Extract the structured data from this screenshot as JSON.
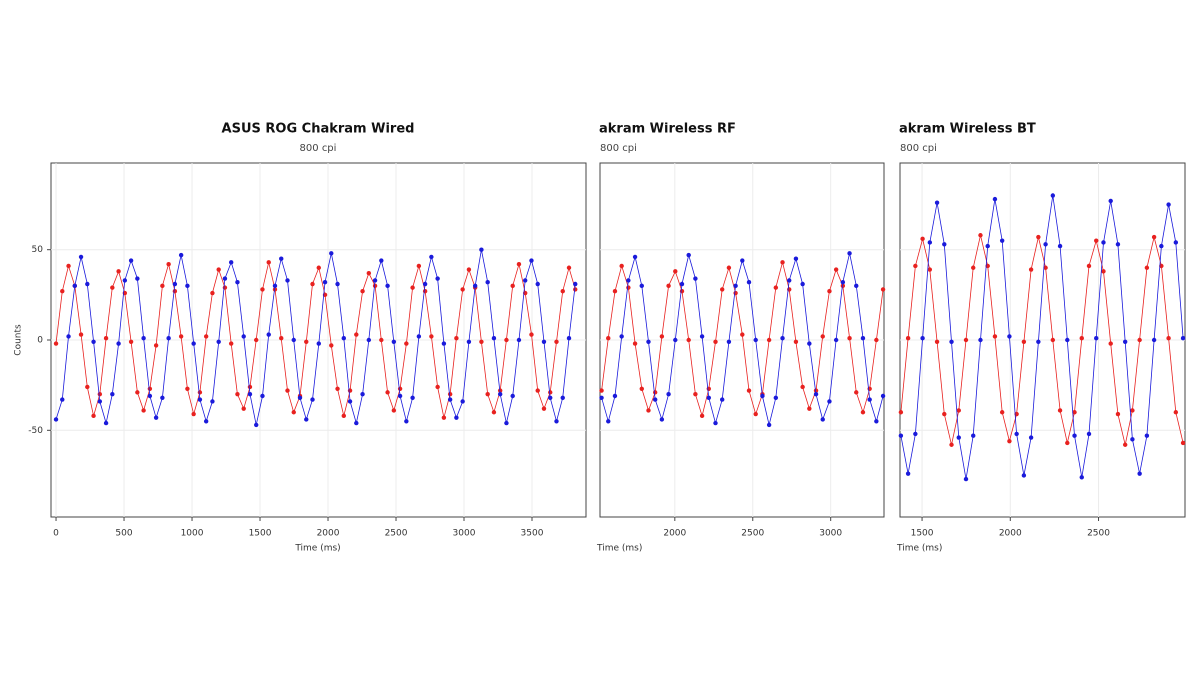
{
  "chart_data": [
    {
      "type": "scatter",
      "title": "ASUS ROG Chakram Wired",
      "subtitle": "800 cpi",
      "x_label": "Time (ms)",
      "y_label": "Counts",
      "xlim": [
        -37,
        3897
      ],
      "ylim": [
        -98,
        98
      ],
      "xticks": [
        0,
        500,
        1000,
        1500,
        2000,
        2500,
        3000,
        3500
      ],
      "yticks": [
        -50,
        0,
        50
      ],
      "ytick_labels": true,
      "grid": true,
      "x": [
        0,
        46,
        92,
        138,
        184,
        230,
        276,
        322,
        368,
        414,
        460,
        506,
        552,
        598,
        644,
        690,
        736,
        782,
        828,
        874,
        920,
        966,
        1012,
        1058,
        1104,
        1150,
        1196,
        1242,
        1288,
        1334,
        1380,
        1426,
        1472,
        1518,
        1564,
        1610,
        1656,
        1702,
        1748,
        1794,
        1840,
        1886,
        1932,
        1978,
        2024,
        2070,
        2116,
        2162,
        2208,
        2254,
        2300,
        2346,
        2392,
        2438,
        2484,
        2530,
        2576,
        2622,
        2668,
        2714,
        2760,
        2806,
        2852,
        2898,
        2944,
        2990,
        3036,
        3082,
        3128,
        3174,
        3220,
        3266,
        3312,
        3358,
        3404,
        3450,
        3496,
        3542,
        3588,
        3634,
        3680,
        3726,
        3772,
        3818
      ],
      "series": [
        {
          "color": "#e8211f",
          "values": [
            -2,
            27,
            41,
            30,
            3,
            -26,
            -42,
            -30,
            1,
            29,
            38,
            26,
            -1,
            -29,
            -39,
            -27,
            -3,
            30,
            42,
            27,
            2,
            -27,
            -41,
            -29,
            2,
            26,
            39,
            29,
            -2,
            -30,
            -38,
            -26,
            0,
            28,
            43,
            28,
            1,
            -28,
            -40,
            -31,
            -1,
            31,
            40,
            25,
            -3,
            -27,
            -42,
            -28,
            3,
            27,
            37,
            30,
            0,
            -29,
            -39,
            -27,
            -2,
            29,
            41,
            27,
            2,
            -26,
            -43,
            -30,
            1,
            28,
            39,
            29,
            -1,
            -30,
            -40,
            -28,
            0,
            30,
            42,
            26,
            3,
            -28,
            -38,
            -29,
            -1,
            27,
            40,
            28
          ]
        },
        {
          "color": "#1a1adb",
          "values": [
            -44,
            -33,
            2,
            30,
            46,
            31,
            -1,
            -34,
            -46,
            -30,
            -2,
            33,
            44,
            34,
            1,
            -31,
            -43,
            -32,
            1,
            31,
            47,
            30,
            -2,
            -33,
            -45,
            -34,
            -1,
            34,
            43,
            32,
            2,
            -30,
            -47,
            -31,
            3,
            30,
            45,
            33,
            0,
            -32,
            -44,
            -33,
            -2,
            32,
            48,
            31,
            1,
            -34,
            -46,
            -30,
            0,
            33,
            44,
            30,
            -1,
            -31,
            -45,
            -32,
            2,
            31,
            46,
            34,
            -2,
            -33,
            -43,
            -34,
            -1,
            30,
            50,
            32,
            1,
            -30,
            -46,
            -31,
            0,
            33,
            44,
            31,
            -1,
            -32,
            -45,
            -32,
            1,
            31
          ]
        }
      ]
    },
    {
      "type": "scatter",
      "title": "akram Wireless RF",
      "subtitle": "800 cpi",
      "x_label": "Time (ms)",
      "xlim": [
        1520,
        3342
      ],
      "ylim": [
        -98,
        98
      ],
      "xticks": [
        2000,
        2500,
        3000
      ],
      "yticks": [
        -50,
        0,
        50
      ],
      "ytick_labels": false,
      "grid": true,
      "x": [
        1530,
        1573,
        1616,
        1659,
        1702,
        1745,
        1788,
        1831,
        1874,
        1917,
        1960,
        2003,
        2046,
        2089,
        2132,
        2175,
        2218,
        2261,
        2304,
        2347,
        2390,
        2433,
        2476,
        2519,
        2562,
        2605,
        2648,
        2691,
        2734,
        2777,
        2820,
        2863,
        2906,
        2949,
        2992,
        3035,
        3078,
        3121,
        3164,
        3207,
        3250,
        3293,
        3336
      ],
      "series": [
        {
          "color": "#e8211f",
          "values": [
            -28,
            1,
            27,
            41,
            29,
            -2,
            -27,
            -39,
            -29,
            2,
            30,
            38,
            27,
            0,
            -30,
            -42,
            -27,
            -1,
            28,
            40,
            26,
            3,
            -28,
            -41,
            -30,
            0,
            29,
            43,
            28,
            -1,
            -26,
            -38,
            -28,
            2,
            27,
            39,
            30,
            1,
            -29,
            -40,
            -27,
            0,
            28
          ]
        },
        {
          "color": "#1a1adb",
          "values": [
            -32,
            -45,
            -31,
            2,
            33,
            46,
            30,
            -1,
            -33,
            -44,
            -30,
            0,
            31,
            47,
            34,
            2,
            -32,
            -46,
            -33,
            -1,
            30,
            44,
            32,
            0,
            -31,
            -47,
            -32,
            1,
            33,
            45,
            31,
            -2,
            -30,
            -44,
            -34,
            0,
            32,
            48,
            30,
            1,
            -33,
            -45,
            -31
          ]
        }
      ]
    },
    {
      "type": "scatter",
      "title": "akram Wireless BT",
      "subtitle": "800 cpi",
      "x_label": "Time (ms)",
      "xlim": [
        1375,
        2990
      ],
      "ylim": [
        -98,
        98
      ],
      "xticks": [
        1500,
        2000,
        2500
      ],
      "yticks": [
        -50,
        0,
        50
      ],
      "ytick_labels": false,
      "grid": true,
      "x": [
        1380,
        1421,
        1462,
        1503,
        1544,
        1585,
        1626,
        1667,
        1708,
        1749,
        1790,
        1831,
        1872,
        1913,
        1954,
        1995,
        2036,
        2077,
        2118,
        2159,
        2200,
        2241,
        2282,
        2323,
        2364,
        2405,
        2446,
        2487,
        2528,
        2569,
        2610,
        2651,
        2692,
        2733,
        2774,
        2815,
        2856,
        2897,
        2938,
        2979
      ],
      "series": [
        {
          "color": "#e8211f",
          "values": [
            -40,
            1,
            41,
            56,
            39,
            -1,
            -41,
            -58,
            -39,
            0,
            40,
            58,
            41,
            2,
            -40,
            -56,
            -41,
            -1,
            39,
            57,
            40,
            0,
            -39,
            -57,
            -40,
            1,
            41,
            55,
            38,
            -2,
            -41,
            -58,
            -39,
            0,
            40,
            57,
            41,
            1,
            -40,
            -57
          ]
        },
        {
          "color": "#1a1adb",
          "values": [
            -53,
            -74,
            -52,
            1,
            54,
            76,
            53,
            -1,
            -54,
            -77,
            -53,
            0,
            52,
            78,
            55,
            2,
            -52,
            -75,
            -54,
            -1,
            53,
            80,
            52,
            0,
            -53,
            -76,
            -52,
            1,
            54,
            77,
            53,
            -1,
            -55,
            -74,
            -53,
            0,
            52,
            75,
            54,
            1
          ]
        }
      ]
    }
  ]
}
